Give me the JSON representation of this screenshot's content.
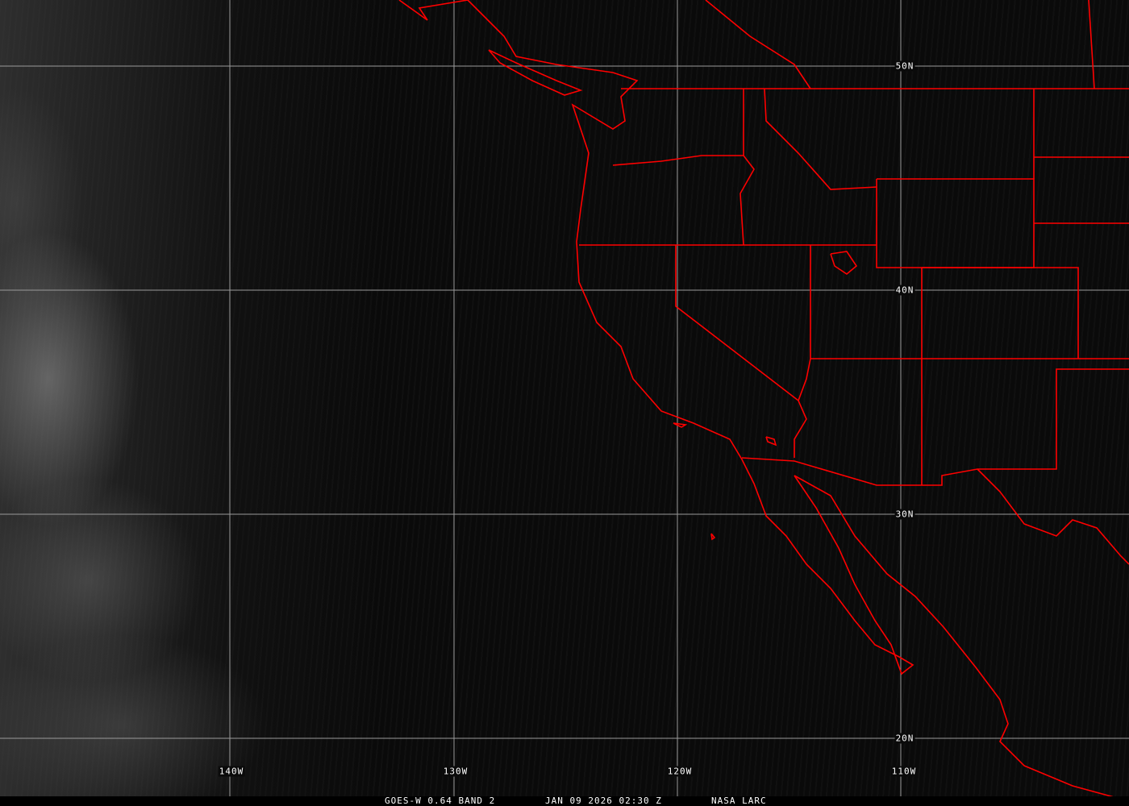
{
  "map": {
    "image_type": "satellite visible imagery",
    "colors": {
      "borders": "#ff0000",
      "grid": "#9a9a9a",
      "background": "#0a0a0a"
    },
    "lat_labels": [
      "50N",
      "40N",
      "30N",
      "20N"
    ],
    "lon_labels": [
      "140W",
      "130W",
      "120W",
      "110W"
    ]
  },
  "caption": {
    "satellite": "GOES-W 0.64 BAND 2",
    "datetime": "JAN 09 2026 02:30 Z",
    "source": "NASA LARC"
  }
}
